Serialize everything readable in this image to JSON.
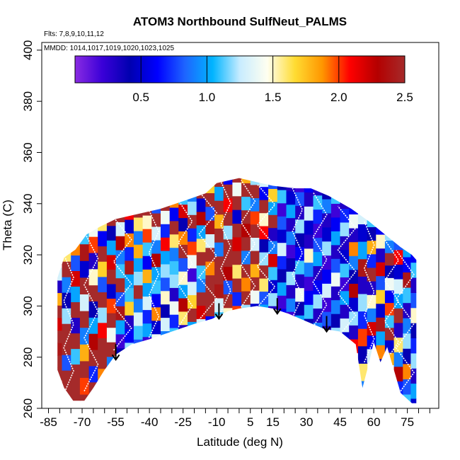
{
  "chart_data": {
    "type": "heatmap",
    "title": "ATOM3 Northbound SulfNeut_PALMS",
    "flights_note": "Flts: 7,8,9,10,11,12",
    "dates_note": "MMDD: 1014,1017,1019,1020,1023,1025",
    "xlabel": "Latitude (deg N)",
    "ylabel": "Theta (C)",
    "xlim": [
      -88,
      89
    ],
    "ylim": [
      260,
      403
    ],
    "x_ticks": [
      -85,
      -70,
      -55,
      -40,
      -25,
      -10,
      5,
      15,
      30,
      45,
      60,
      75
    ],
    "x_minor_ticks": [
      -80,
      -75,
      -65,
      -60,
      -50,
      -45,
      -35,
      -30,
      -20,
      -15,
      -5,
      0,
      10,
      20,
      25,
      35,
      40,
      50,
      55,
      65,
      70,
      80,
      85
    ],
    "y_ticks": [
      260,
      280,
      300,
      320,
      340,
      360,
      380,
      400
    ],
    "colorbar": {
      "min": 0,
      "max": 2.5,
      "ticks": [
        0.5,
        1.0,
        1.5,
        2.0,
        2.5
      ],
      "tick_labels": [
        "0.5",
        "1.0",
        "1.5",
        "2.0",
        "2.5"
      ],
      "colors": [
        "#8a2be2",
        "#3a00d8",
        "#0000b0",
        "#0000ff",
        "#1e64ff",
        "#00b4ff",
        "#c8ecff",
        "#fffff0",
        "#ffdc32",
        "#ff9600",
        "#ff0000",
        "#b40000",
        "#a52a2a"
      ]
    },
    "domain": {
      "top_boundary": [
        [
          -81,
          311
        ],
        [
          -78,
          319
        ],
        [
          -73,
          322
        ],
        [
          -68,
          328
        ],
        [
          -62,
          331
        ],
        [
          -55,
          334
        ],
        [
          -45,
          336
        ],
        [
          -35,
          338
        ],
        [
          -25,
          341
        ],
        [
          -15,
          344
        ],
        [
          -10,
          348
        ],
        [
          0,
          350
        ],
        [
          5,
          349
        ],
        [
          15,
          347
        ],
        [
          25,
          346
        ],
        [
          32,
          346
        ],
        [
          40,
          343
        ],
        [
          50,
          338
        ],
        [
          58,
          333
        ],
        [
          65,
          328
        ],
        [
          72,
          323
        ],
        [
          77,
          320
        ],
        [
          79,
          318
        ]
      ],
      "bottom_boundary": [
        [
          79,
          262
        ],
        [
          77,
          262
        ],
        [
          72,
          266
        ],
        [
          66,
          284
        ],
        [
          63,
          278
        ],
        [
          60,
          286
        ],
        [
          58,
          278
        ],
        [
          55,
          268
        ],
        [
          52,
          285
        ],
        [
          45,
          290
        ],
        [
          38,
          291
        ],
        [
          30,
          294
        ],
        [
          22,
          297
        ],
        [
          15,
          299
        ],
        [
          8,
          300
        ],
        [
          0,
          299
        ],
        [
          -5,
          298
        ],
        [
          -12,
          295
        ],
        [
          -20,
          293
        ],
        [
          -30,
          290
        ],
        [
          -40,
          287
        ],
        [
          -48,
          285
        ],
        [
          -55,
          281
        ],
        [
          -60,
          275
        ],
        [
          -65,
          268
        ],
        [
          -69,
          263
        ],
        [
          -74,
          263
        ],
        [
          -78,
          268
        ],
        [
          -81,
          275
        ],
        [
          -81,
          311
        ]
      ]
    },
    "tropopause_arrows": [
      {
        "lat": -55,
        "theta": 279
      },
      {
        "lat": -9,
        "theta": 295
      },
      {
        "lat": 17,
        "theta": 297
      },
      {
        "lat": 39,
        "theta": 290
      }
    ],
    "latitude_bins": [
      {
        "lat": -81,
        "values": [
          2.5,
          2.5,
          2.4,
          2.5,
          2.2,
          2.5,
          1.8,
          0.3,
          1.3
        ]
      },
      {
        "lat": -77,
        "values": [
          2.5,
          2.5,
          0.8,
          2.5,
          2.5,
          1.2,
          0.4,
          0.9,
          2.5,
          1.6
        ]
      },
      {
        "lat": -73,
        "values": [
          2.5,
          2.5,
          2.5,
          1.1,
          2.5,
          0.3,
          2.5,
          1.0,
          2.2,
          0.8,
          1.9
        ]
      },
      {
        "lat": -69,
        "values": [
          2.5,
          2.0,
          2.5,
          1.8,
          0.9,
          2.5,
          1.3,
          2.5,
          0.5,
          2.4,
          1.1
        ]
      },
      {
        "lat": -65,
        "values": [
          2.5,
          0.7,
          2.5,
          2.3,
          1.0,
          0.4,
          2.5,
          1.5,
          0.3,
          2.0,
          1.4
        ]
      },
      {
        "lat": -61,
        "values": [
          1.9,
          2.5,
          2.5,
          2.1,
          1.2,
          2.5,
          0.8,
          1.7,
          2.5,
          0.6,
          1.6
        ]
      },
      {
        "lat": -57,
        "values": [
          0.9,
          2.5,
          1.4,
          2.5,
          2.0,
          0.5,
          2.5,
          2.2,
          1.0,
          0.4,
          2.5
        ]
      },
      {
        "lat": -53,
        "values": [
          0.4,
          0.2,
          1.0,
          2.4,
          0.8,
          2.5,
          1.1,
          0.9,
          2.3,
          1.3,
          2.5
        ]
      },
      {
        "lat": -49,
        "values": [
          1.2,
          0.6,
          0.3,
          1.7,
          1.1,
          1.0,
          2.4,
          0.7,
          1.9,
          0.5,
          2.1
        ]
      },
      {
        "lat": -45,
        "values": [
          0.8,
          1.1,
          1.3,
          0.9,
          2.5,
          1.2,
          1.0,
          1.8,
          0.9,
          1.6,
          2.5
        ]
      },
      {
        "lat": -41,
        "values": [
          0.2,
          1.0,
          0.7,
          1.3,
          1.0,
          1.8,
          0.6,
          1.1,
          2.0,
          1.5,
          2.5
        ]
      },
      {
        "lat": -37,
        "values": [
          1.4,
          0.5,
          1.9,
          0.6,
          1.1,
          1.0,
          2.3,
          0.9,
          1.3,
          2.5,
          0.8
        ]
      },
      {
        "lat": -33,
        "values": [
          0.9,
          1.3,
          0.4,
          1.5,
          0.8,
          1.2,
          1.0,
          2.1,
          0.7,
          1.4,
          2.5
        ]
      },
      {
        "lat": -29,
        "values": [
          1.1,
          0.7,
          1.4,
          0.3,
          1.2,
          1.1,
          0.9,
          1.6,
          2.5,
          0.6,
          1.9
        ]
      },
      {
        "lat": -25,
        "values": [
          0.3,
          1.6,
          2.3,
          1.0,
          1.5,
          0.8,
          2.5,
          1.9,
          0.4,
          2.2,
          1.1
        ]
      },
      {
        "lat": -21,
        "values": [
          1.0,
          2.5,
          1.7,
          1.3,
          0.2,
          1.4,
          2.0,
          0.7,
          2.5,
          1.2,
          0.9
        ]
      },
      {
        "lat": -17,
        "values": [
          1.3,
          2.2,
          2.5,
          0.9,
          1.1,
          2.5,
          1.6,
          1.0,
          2.3,
          0.5,
          2.5
        ]
      },
      {
        "lat": -13,
        "values": [
          0.6,
          2.5,
          2.5,
          2.5,
          1.9,
          2.5,
          1.3,
          2.4,
          0.8,
          2.5,
          1.7
        ]
      },
      {
        "lat": -9,
        "values": [
          1.1,
          1.3,
          2.4,
          2.5,
          2.5,
          0.9,
          2.5,
          1.8,
          2.5,
          1.0,
          2.5
        ]
      },
      {
        "lat": -5,
        "values": [
          1.5,
          2.5,
          0.8,
          2.3,
          2.5,
          2.5,
          1.2,
          2.5,
          2.1,
          2.5,
          0.6
        ]
      },
      {
        "lat": -1,
        "values": [
          2.0,
          0.7,
          2.5,
          1.6,
          2.5,
          2.2,
          2.5,
          0.5,
          2.5,
          1.4,
          2.5
        ]
      },
      {
        "lat": 3,
        "values": [
          1.2,
          2.5,
          1.9,
          2.5,
          0.9,
          2.5,
          2.3,
          2.5,
          1.1,
          2.5,
          1.8
        ]
      },
      {
        "lat": 7,
        "values": [
          0.5,
          1.4,
          2.5,
          1.8,
          2.5,
          1.3,
          2.5,
          2.0,
          0.9,
          2.5,
          1.2
        ]
      },
      {
        "lat": 11,
        "values": [
          1.0,
          0.8,
          1.6,
          2.5,
          1.2,
          0.4,
          2.1,
          1.5,
          2.5,
          0.6,
          1.3
        ]
      },
      {
        "lat": 15,
        "values": [
          0.3,
          1.2,
          0.5,
          1.1,
          2.2,
          0.9,
          0.3,
          2.5,
          1.0,
          1.7,
          0.8
        ]
      },
      {
        "lat": 19,
        "values": [
          0.6,
          0.2,
          1.0,
          0.4,
          0.7,
          1.3,
          0.5,
          0.8,
          0.2,
          1.1,
          0.4
        ]
      },
      {
        "lat": 23,
        "values": [
          0.2,
          0.9,
          0.3,
          1.2,
          0.4,
          0.2,
          0.9,
          0.3,
          1.0,
          0.5,
          0.3
        ]
      },
      {
        "lat": 27,
        "values": [
          1.0,
          0.4,
          1.4,
          0.3,
          1.1,
          0.6,
          0.4,
          1.2,
          0.3,
          0.8,
          0.2
        ]
      },
      {
        "lat": 31,
        "values": [
          0.4,
          1.1,
          0.6,
          0.2,
          0.9,
          1.5,
          0.3,
          0.5,
          1.3,
          0.3,
          0.6
        ]
      },
      {
        "lat": 35,
        "values": [
          0.9,
          0.3,
          1.2,
          0.6,
          0.3,
          1.0,
          0.8,
          0.2,
          0.7,
          1.1,
          0.3
        ]
      },
      {
        "lat": 39,
        "values": [
          0.3,
          0.8,
          0.2,
          1.3,
          0.6,
          0.2,
          1.2,
          0.5,
          0.3,
          0.9,
          0.4
        ]
      },
      {
        "lat": 43,
        "values": [
          1.2,
          0.4,
          0.9,
          0.3,
          1.4,
          0.8,
          0.3,
          1.0,
          0.6,
          0.2,
          1.1
        ]
      },
      {
        "lat": 47,
        "values": [
          0.5,
          1.3,
          0.3,
          1.0,
          0.2,
          1.1,
          0.5,
          0.3,
          1.2,
          0.7,
          0.3
        ]
      },
      {
        "lat": 51,
        "values": [
          2.1,
          0.3,
          1.2,
          0.5,
          2.3,
          0.4,
          0.9,
          1.9,
          0.3,
          1.4,
          0.6
        ]
      },
      {
        "lat": 55,
        "values": [
          0.9,
          1.6,
          0.4,
          2.0,
          0.7,
          1.2,
          0.3,
          2.4,
          1.0,
          0.5,
          1.3
        ]
      },
      {
        "lat": 59,
        "values": [
          1.3,
          0.6,
          2.2,
          0.9,
          1.5,
          0.3,
          2.5,
          0.7,
          1.8,
          0.4,
          1.1
        ]
      },
      {
        "lat": 63,
        "values": [
          0.4,
          1.9,
          1.0,
          2.4,
          0.5,
          1.7,
          0.8,
          2.2,
          0.3,
          1.5,
          0.6
        ]
      },
      {
        "lat": 67,
        "values": [
          1.8,
          0.5,
          2.5,
          1.1,
          2.0,
          0.6,
          1.4,
          0.4,
          2.5,
          0.9,
          1.2
        ]
      },
      {
        "lat": 71,
        "values": [
          0.7,
          2.3,
          0.9,
          1.6,
          0.3,
          2.5,
          1.0,
          1.3,
          0.5,
          2.1,
          0.8
        ]
      },
      {
        "lat": 75,
        "values": [
          1.1,
          0.8,
          1.9,
          0.4,
          1.2,
          0.9,
          0.3,
          1.1,
          2.4,
          0.6,
          1.0
        ]
      },
      {
        "lat": 78,
        "values": [
          0.5,
          1.0,
          0.3,
          1.2,
          0.7,
          0.4,
          1.5,
          0.8,
          0.3,
          1.1,
          0.6
        ]
      }
    ]
  }
}
